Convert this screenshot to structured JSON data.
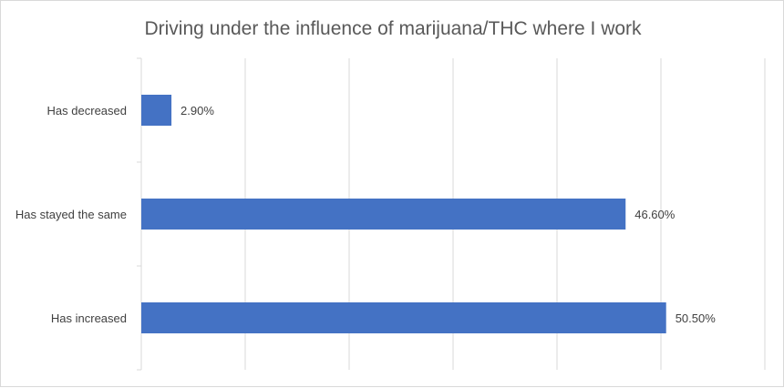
{
  "chart_data": {
    "type": "bar",
    "orientation": "horizontal",
    "title": "Driving under the influence of marijuana/THC where I work",
    "categories": [
      "Has decreased",
      "Has stayed the same",
      "Has increased"
    ],
    "values": [
      2.9,
      46.6,
      50.5
    ],
    "data_labels": [
      "2.90%",
      "46.60%",
      "50.50%"
    ],
    "xlim": [
      0,
      60
    ],
    "grid": true,
    "legend": "none",
    "bar_color": "#4472C4",
    "grid_color": "#d9d9d9"
  }
}
